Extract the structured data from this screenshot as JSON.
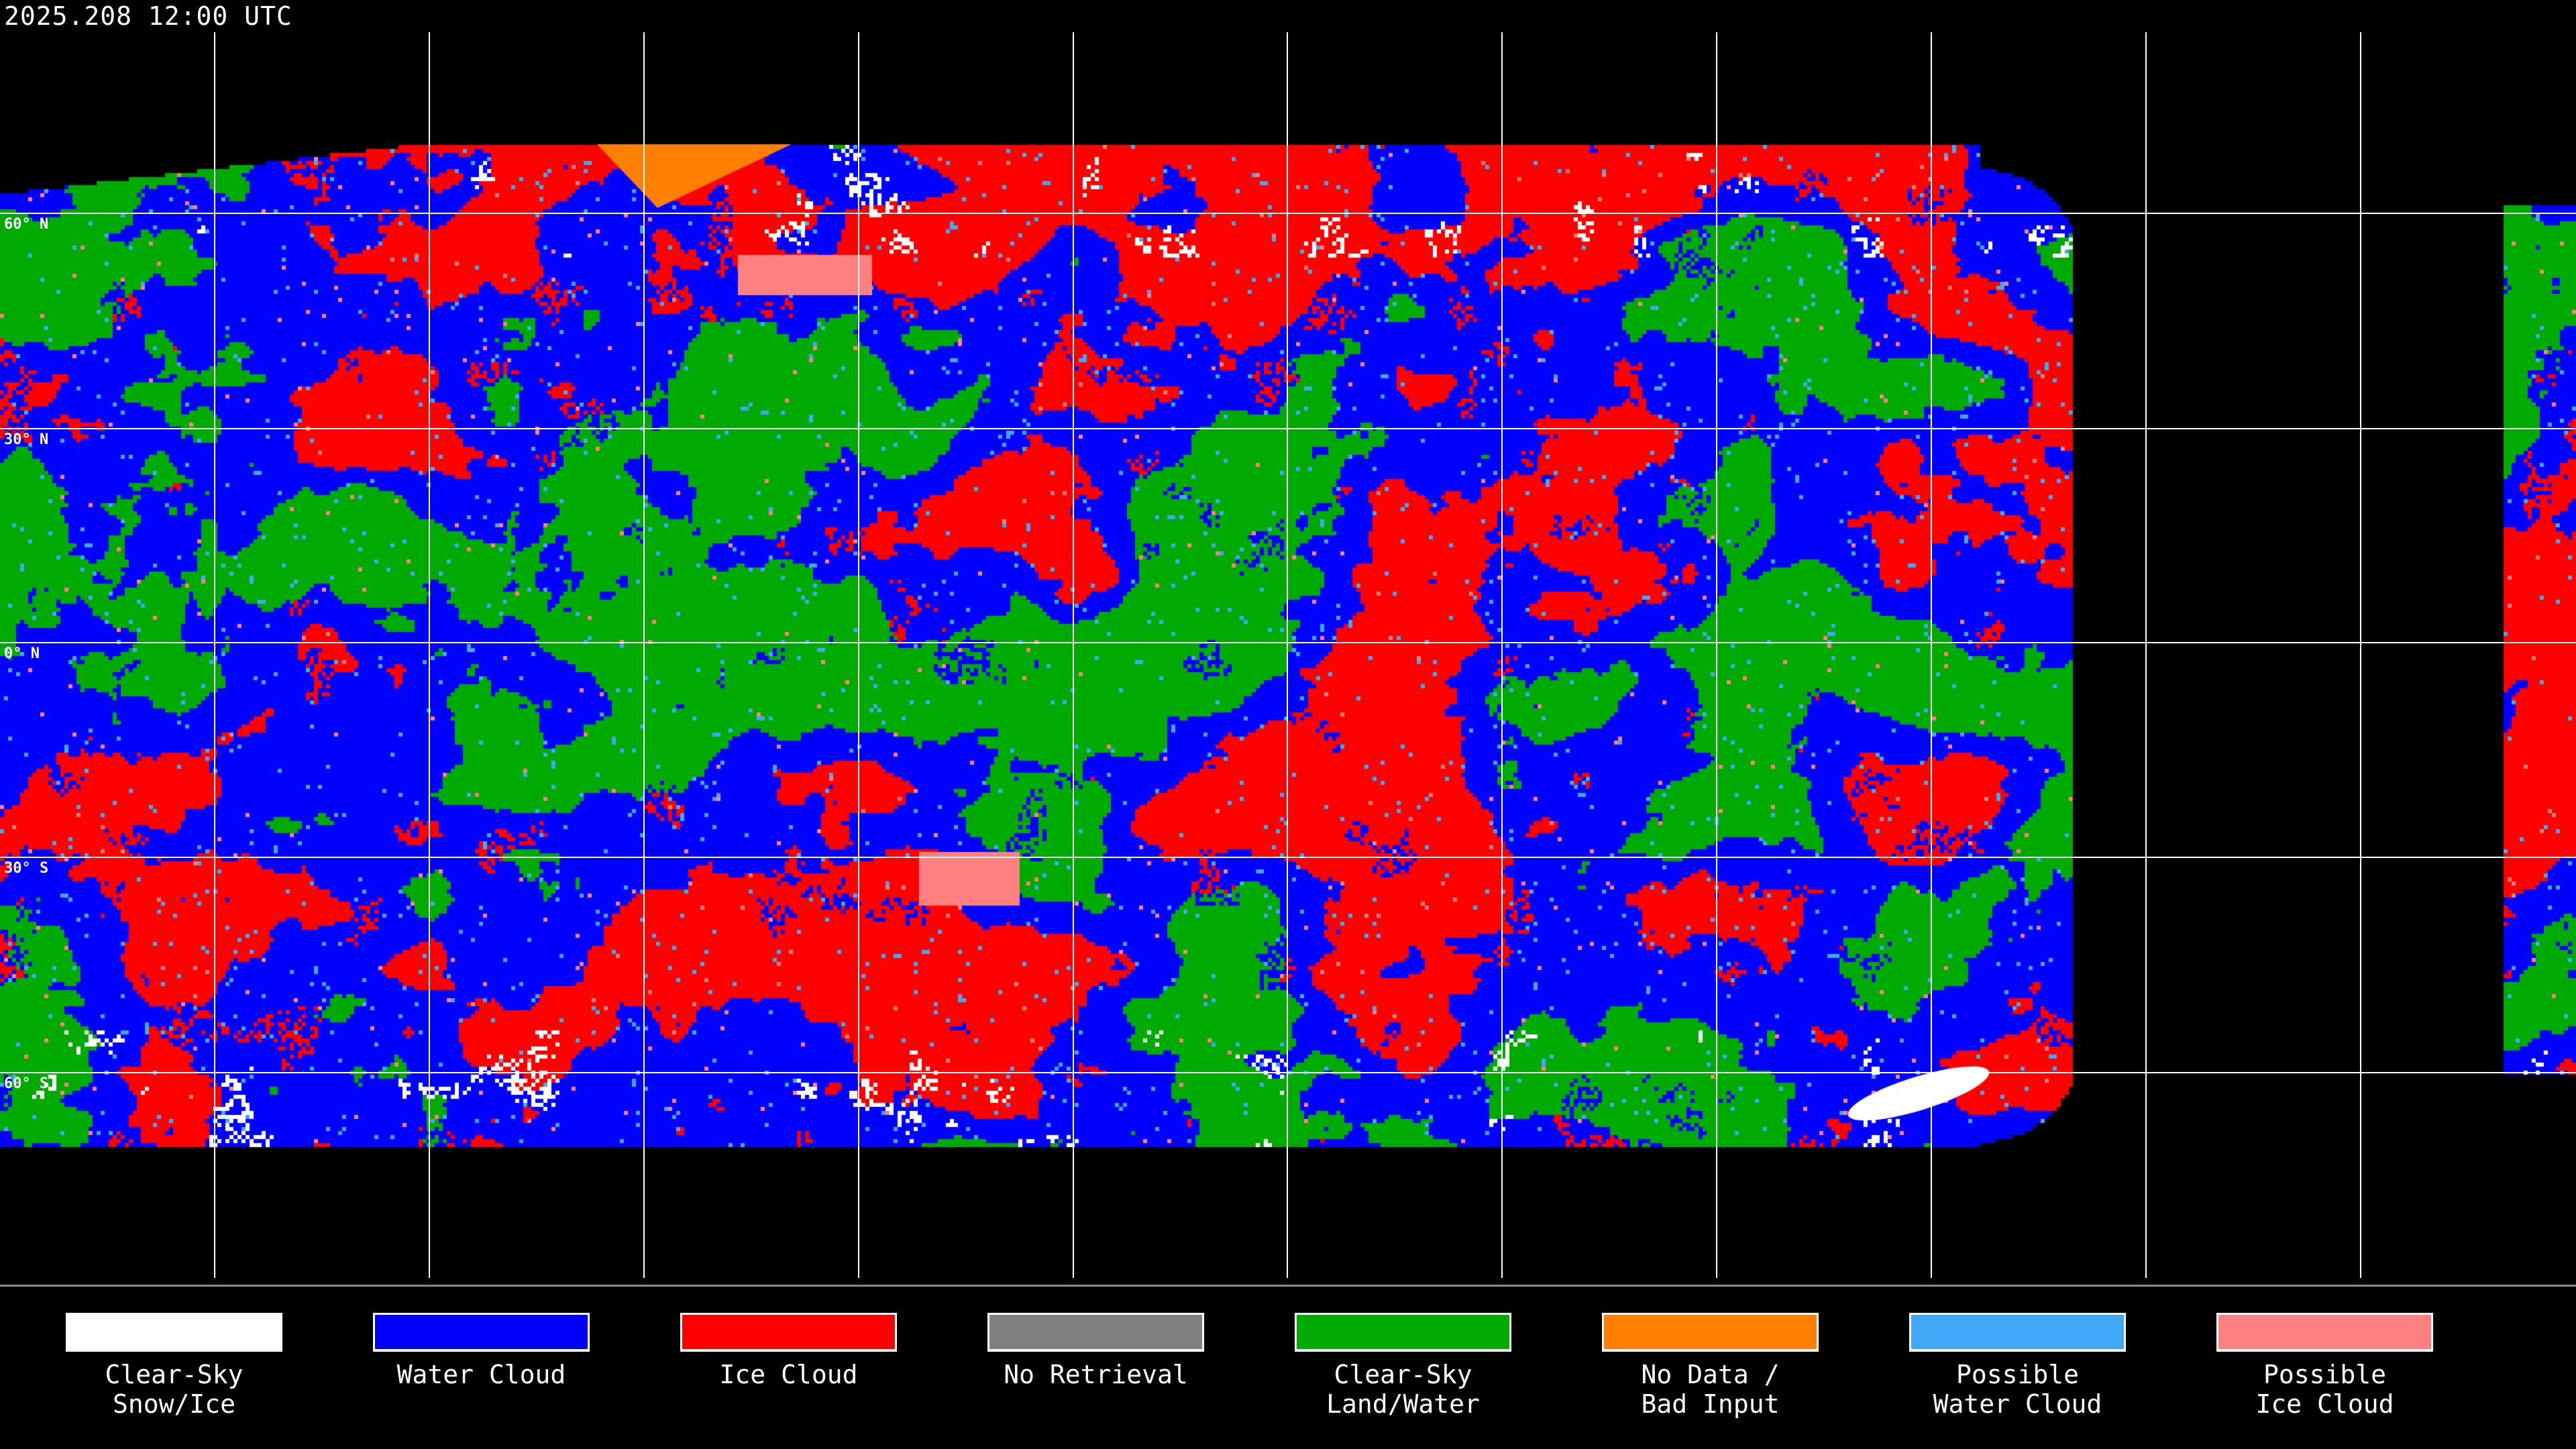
{
  "title": "2025.208 12:00 UTC",
  "latitude_labels": [
    "60° N",
    "30° N",
    "0° N",
    "30° S",
    "60° S"
  ],
  "legend": [
    {
      "line1": "Clear-Sky",
      "line2": "Snow/Ice",
      "color": "#ffffff"
    },
    {
      "line1": "Water Cloud",
      "line2": "",
      "color": "#0000ff"
    },
    {
      "line1": "Ice Cloud",
      "line2": "",
      "color": "#ff0000"
    },
    {
      "line1": "No Retrieval",
      "line2": "",
      "color": "#808080"
    },
    {
      "line1": "Clear-Sky",
      "line2": "Land/Water",
      "color": "#00aa00"
    },
    {
      "line1": "No Data /",
      "line2": "Bad Input",
      "color": "#ff8000"
    },
    {
      "line1": "Possible",
      "line2": "Water Cloud",
      "color": "#3fa9f5"
    },
    {
      "line1": "Possible",
      "line2": "Ice Cloud",
      "color": "#ff8080"
    }
  ]
}
